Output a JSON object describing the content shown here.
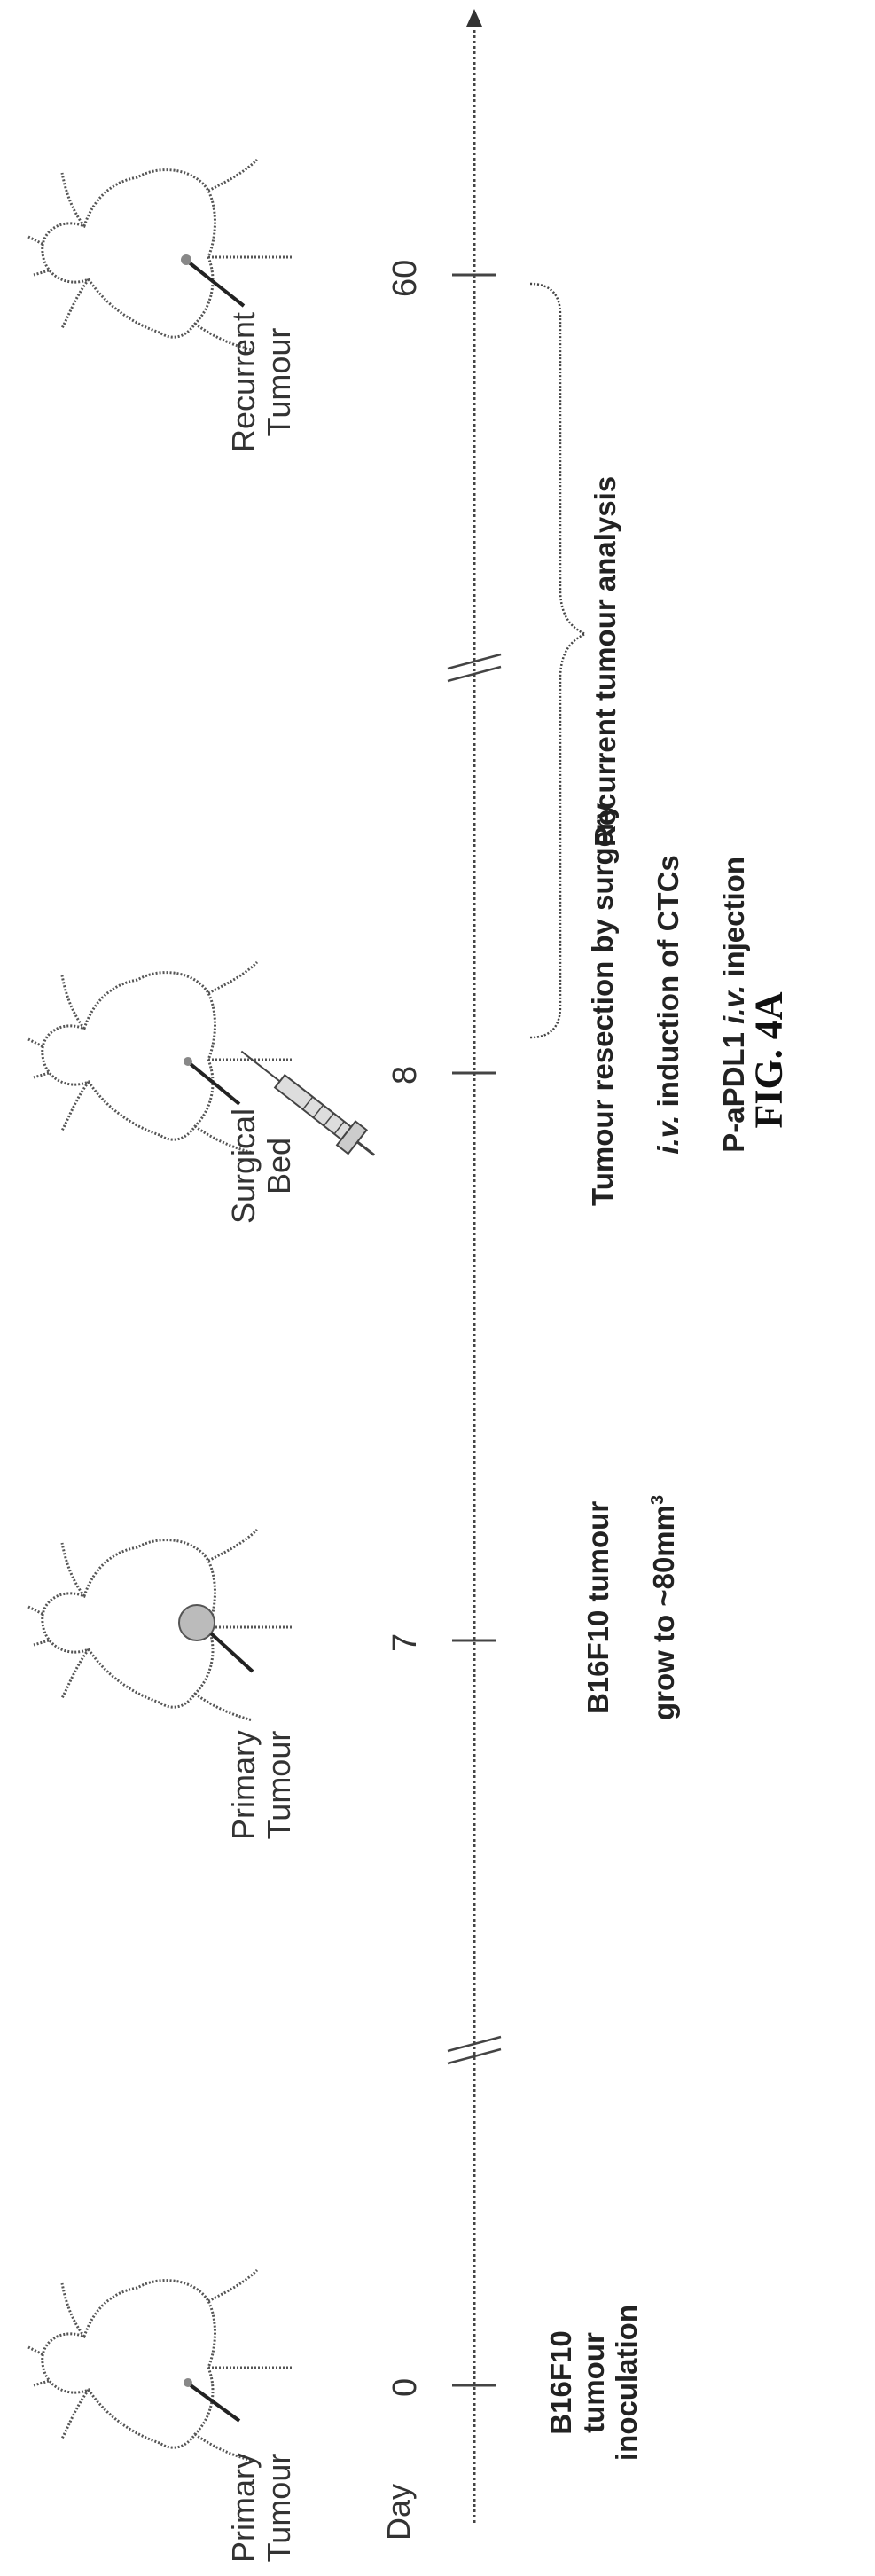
{
  "timeline": {
    "axis_label": "Day",
    "ticks": [
      "0",
      "7",
      "8",
      "60"
    ]
  },
  "mice": {
    "m1_label": "Primary\nTumour",
    "m2_label": "Primary\nTumour",
    "m3_label": "Surgical\nBed",
    "m4_label": "Recurrent\nTumour"
  },
  "events": {
    "e1": "B16F10\ntumour\ninoculation",
    "e2_line1": "B16F10 tumour",
    "e2_line2": "grow to ~80mm",
    "e2_sup": "3",
    "e3_line1": "Tumour resection by surgery",
    "e3_line2_i": "i.v.",
    "e3_line2_rest": " induction of CTCs",
    "e3_line3_pre": "P-aPDL1 ",
    "e3_line3_i": "i.v.",
    "e3_line3_rest": " injection",
    "e4": "Recurrent tumour analysis"
  },
  "figure_label": "FIG. 4A"
}
